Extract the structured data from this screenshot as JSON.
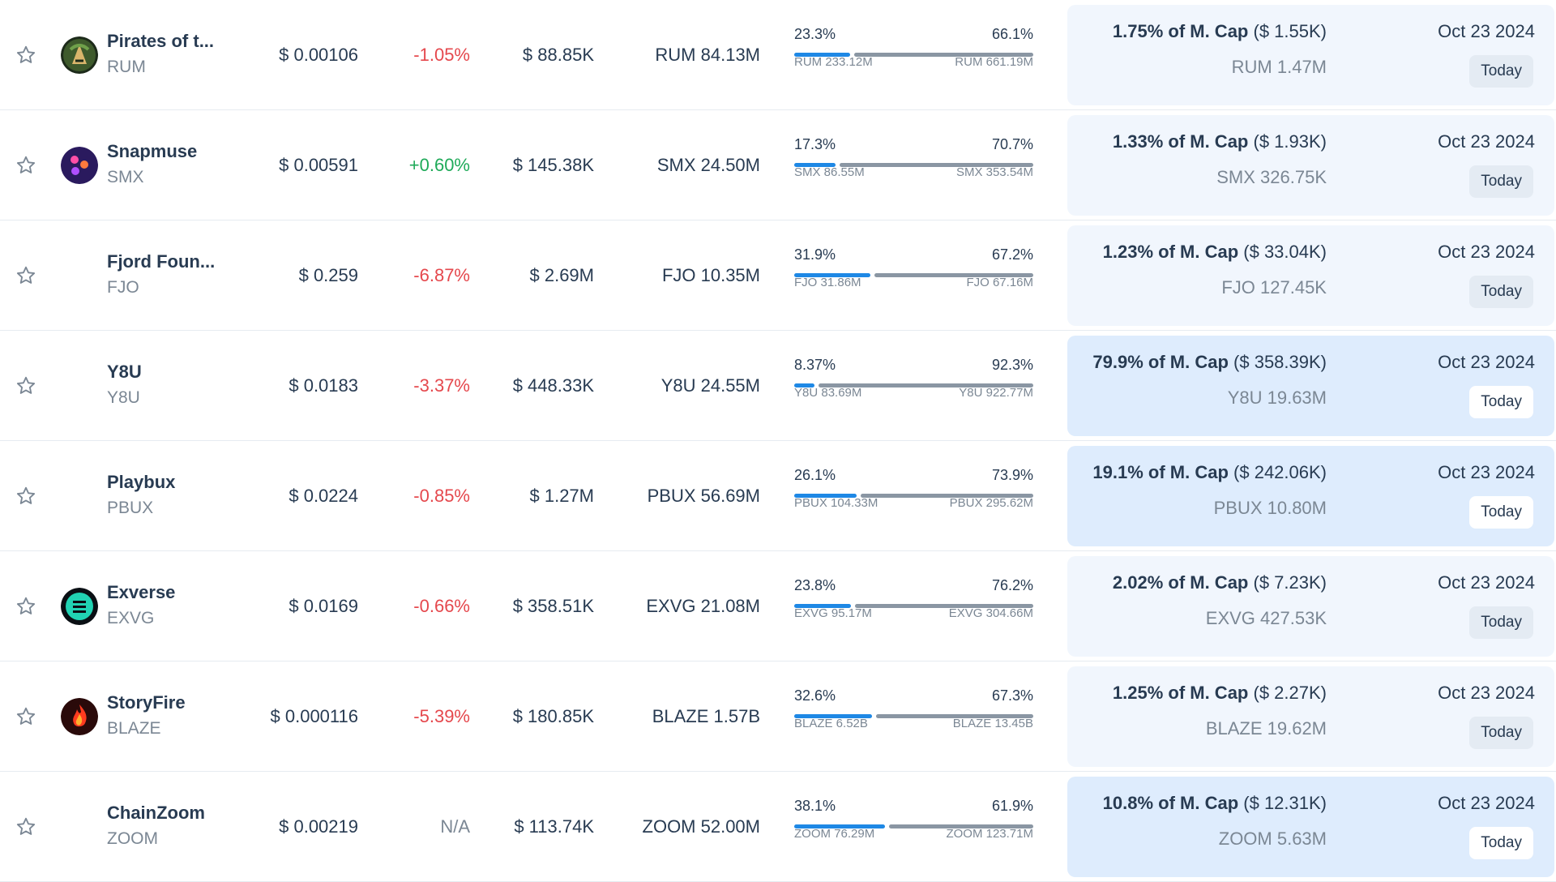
{
  "rows": [
    {
      "name": "Pirates of t...",
      "symbol": "RUM",
      "logo": "pirates-logo",
      "price": "$ 0.00106",
      "change": "-1.05%",
      "change_dir": "neg",
      "volume": "$ 88.85K",
      "circulating": "RUM 84.13M",
      "unlocked_pct": "23.3%",
      "locked_pct": "66.1%",
      "unlocked_frac": 0.233,
      "unlocked_amt": "RUM 233.12M",
      "locked_amt": "RUM 661.19M",
      "next_pct": "1.75% of M. Cap",
      "next_value": "($ 1.55K)",
      "next_amount": "RUM 1.47M",
      "next_date": "Oct 23 2024",
      "next_when": "Today",
      "highlight": false
    },
    {
      "name": "Snapmuse",
      "symbol": "SMX",
      "logo": "snapmuse-logo",
      "price": "$ 0.00591",
      "change": "+0.60%",
      "change_dir": "pos",
      "volume": "$ 145.38K",
      "circulating": "SMX 24.50M",
      "unlocked_pct": "17.3%",
      "locked_pct": "70.7%",
      "unlocked_frac": 0.173,
      "unlocked_amt": "SMX 86.55M",
      "locked_amt": "SMX 353.54M",
      "next_pct": "1.33% of M. Cap",
      "next_value": "($ 1.93K)",
      "next_amount": "SMX 326.75K",
      "next_date": "Oct 23 2024",
      "next_when": "Today",
      "highlight": false
    },
    {
      "name": "Fjord Foun...",
      "symbol": "FJO",
      "logo": "",
      "price": "$ 0.259",
      "change": "-6.87%",
      "change_dir": "neg",
      "volume": "$ 2.69M",
      "circulating": "FJO 10.35M",
      "unlocked_pct": "31.9%",
      "locked_pct": "67.2%",
      "unlocked_frac": 0.319,
      "unlocked_amt": "FJO 31.86M",
      "locked_amt": "FJO 67.16M",
      "next_pct": "1.23% of M. Cap",
      "next_value": "($ 33.04K)",
      "next_amount": "FJO 127.45K",
      "next_date": "Oct 23 2024",
      "next_when": "Today",
      "highlight": false
    },
    {
      "name": "Y8U",
      "symbol": "Y8U",
      "logo": "",
      "price": "$ 0.0183",
      "change": "-3.37%",
      "change_dir": "neg",
      "volume": "$ 448.33K",
      "circulating": "Y8U 24.55M",
      "unlocked_pct": "8.37%",
      "locked_pct": "92.3%",
      "unlocked_frac": 0.0837,
      "unlocked_amt": "Y8U 83.69M",
      "locked_amt": "Y8U 922.77M",
      "next_pct": "79.9% of M. Cap",
      "next_value": "($ 358.39K)",
      "next_amount": "Y8U 19.63M",
      "next_date": "Oct 23 2024",
      "next_when": "Today",
      "highlight": true
    },
    {
      "name": "Playbux",
      "symbol": "PBUX",
      "logo": "",
      "price": "$ 0.0224",
      "change": "-0.85%",
      "change_dir": "neg",
      "volume": "$ 1.27M",
      "circulating": "PBUX 56.69M",
      "unlocked_pct": "26.1%",
      "locked_pct": "73.9%",
      "unlocked_frac": 0.261,
      "unlocked_amt": "PBUX 104.33M",
      "locked_amt": "PBUX 295.62M",
      "next_pct": "19.1% of M. Cap",
      "next_value": "($ 242.06K)",
      "next_amount": "PBUX 10.80M",
      "next_date": "Oct 23 2024",
      "next_when": "Today",
      "highlight": true
    },
    {
      "name": "Exverse",
      "symbol": "EXVG",
      "logo": "exverse-logo",
      "price": "$ 0.0169",
      "change": "-0.66%",
      "change_dir": "neg",
      "volume": "$ 358.51K",
      "circulating": "EXVG 21.08M",
      "unlocked_pct": "23.8%",
      "locked_pct": "76.2%",
      "unlocked_frac": 0.238,
      "unlocked_amt": "EXVG 95.17M",
      "locked_amt": "EXVG 304.66M",
      "next_pct": "2.02% of M. Cap",
      "next_value": "($ 7.23K)",
      "next_amount": "EXVG 427.53K",
      "next_date": "Oct 23 2024",
      "next_when": "Today",
      "highlight": false
    },
    {
      "name": "StoryFire",
      "symbol": "BLAZE",
      "logo": "storyfire-logo",
      "price": "$ 0.000116",
      "change": "-5.39%",
      "change_dir": "neg",
      "volume": "$ 180.85K",
      "circulating": "BLAZE 1.57B",
      "unlocked_pct": "32.6%",
      "locked_pct": "67.3%",
      "unlocked_frac": 0.326,
      "unlocked_amt": "BLAZE 6.52B",
      "locked_amt": "BLAZE 13.45B",
      "next_pct": "1.25% of M. Cap",
      "next_value": "($ 2.27K)",
      "next_amount": "BLAZE 19.62M",
      "next_date": "Oct 23 2024",
      "next_when": "Today",
      "highlight": false
    },
    {
      "name": "ChainZoom",
      "symbol": "ZOOM",
      "logo": "",
      "price": "$ 0.00219",
      "change": "N/A",
      "change_dir": "na",
      "volume": "$ 113.74K",
      "circulating": "ZOOM 52.00M",
      "unlocked_pct": "38.1%",
      "locked_pct": "61.9%",
      "unlocked_frac": 0.381,
      "unlocked_amt": "ZOOM 76.29M",
      "locked_amt": "ZOOM 123.71M",
      "next_pct": "10.8% of M. Cap",
      "next_value": "($ 12.31K)",
      "next_amount": "ZOOM 5.63M",
      "next_date": "Oct 23 2024",
      "next_when": "Today",
      "highlight": true
    }
  ]
}
